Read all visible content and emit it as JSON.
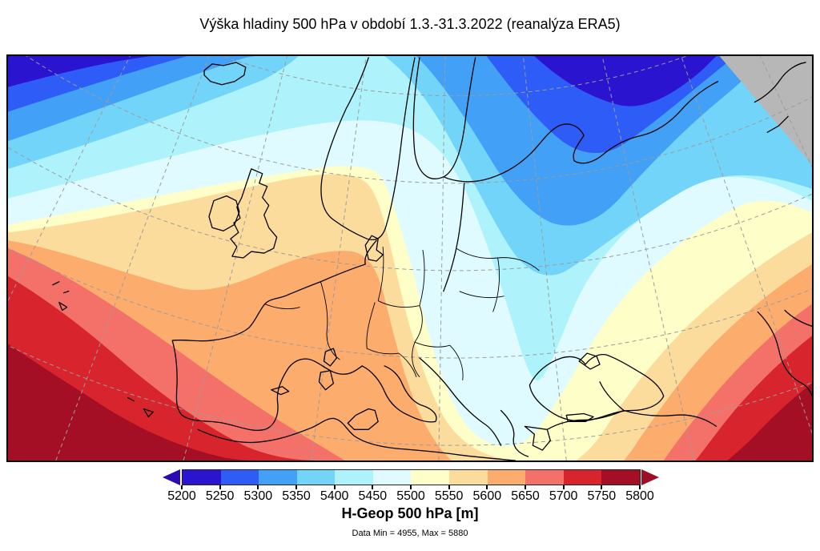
{
  "title": "Výška hladiny 500 hPa v období 1.3.-31.3.2022 (reanalýza ERA5)",
  "map": {
    "no_data_color": "#b7b7b7",
    "graticule_color": "#9c9c9c",
    "coastline_color": "#000000",
    "frame_color": "#000000"
  },
  "colorbar": {
    "title": "H-Geop 500 hPa [m]",
    "footnote": "Data Min = 4955, Max = 5880",
    "below_color": "#2c0ab0",
    "above_color": "#9e0e24",
    "tick_labels": [
      "5200",
      "5250",
      "5300",
      "5350",
      "5400",
      "5450",
      "5500",
      "5550",
      "5600",
      "5650",
      "5700",
      "5750",
      "5800"
    ],
    "bands": [
      {
        "range": "5200-5250",
        "color": "#2a14d0"
      },
      {
        "range": "5250-5300",
        "color": "#2e5cf6"
      },
      {
        "range": "5300-5350",
        "color": "#42a0f6"
      },
      {
        "range": "5350-5400",
        "color": "#72d4f8"
      },
      {
        "range": "5400-5450",
        "color": "#aef2fb"
      },
      {
        "range": "5450-5500",
        "color": "#dffbff"
      },
      {
        "range": "5500-5550",
        "color": "#fefec8"
      },
      {
        "range": "5550-5600",
        "color": "#fcdc9c"
      },
      {
        "range": "5600-5650",
        "color": "#fcac6c"
      },
      {
        "range": "5650-5700",
        "color": "#f4716a"
      },
      {
        "range": "5700-5750",
        "color": "#d8242c"
      },
      {
        "range": "5750-5800",
        "color": "#a50f26"
      }
    ]
  },
  "chart_data": {
    "type": "heatmap",
    "subtype": "filled_contour_map",
    "title": "Výška hladiny 500 hPa v období 1.3.-31.3.2022 (reanalýza ERA5)",
    "variable": "H-Geop 500 hPa",
    "units": "m",
    "region": "Europe / North Atlantic",
    "period": "1.3.-31.3.2022",
    "source": "ERA5",
    "data_min": 4955,
    "data_max": 5880,
    "colorbar_min": 5200,
    "colorbar_max": 5800,
    "contour_interval": 50,
    "levels": [
      5200,
      5250,
      5300,
      5350,
      5400,
      5450,
      5500,
      5550,
      5600,
      5650,
      5700,
      5750,
      5800
    ],
    "legend_position": "bottom",
    "grid": "dashed graticule",
    "field_pattern": [
      "Deep low (<5250 m, dark blue) in the top-left / Norwegian Sea",
      "Second low (<5250 m, dark blue) top-centre-right over the Barents region",
      "Cold trough (5350-5500 m, pale cyan) dipping south over eastern Europe and the Black Sea",
      "Warm ridge (5550-5650 m, tan/orange) from Iberia across the British Isles to southern Scandinavia and central Europe",
      "Heights above 5800 m (dark red) in the south-west Atlantic corner and in the south-east corner",
      "Grey no-data sector in the top-right corner"
    ]
  }
}
